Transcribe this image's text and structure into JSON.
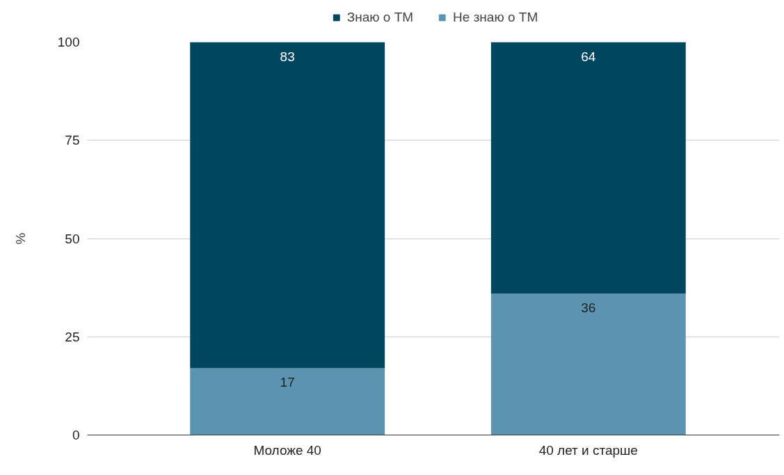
{
  "chart_data": {
    "type": "bar",
    "stacked": true,
    "ylabel": "%",
    "categories": [
      "Моложе 40",
      "40 лет и старше"
    ],
    "series": [
      {
        "name": "Не знаю о ТМ",
        "color": "#5b93b0",
        "values": [
          17,
          36
        ]
      },
      {
        "name": "Знаю о ТМ",
        "color": "#01465f",
        "values": [
          83,
          64
        ]
      }
    ],
    "ylim": [
      0,
      100
    ],
    "yticks": [
      0,
      25,
      50,
      75,
      100
    ],
    "grid": "y",
    "legend": "top",
    "data_labels": true
  }
}
